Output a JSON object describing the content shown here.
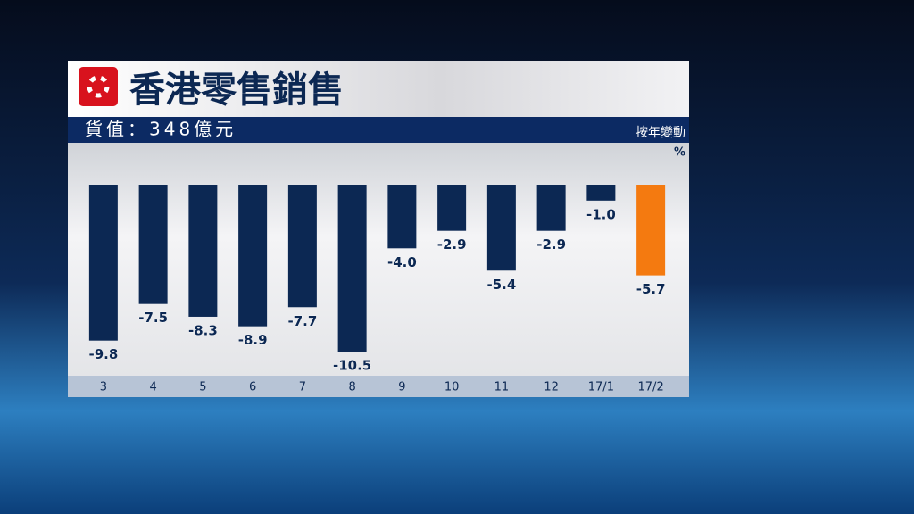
{
  "chart_data": {
    "type": "bar",
    "title": "香港零售銷售",
    "subtitle": "貨值：348億元",
    "y_label": "按年變動",
    "unit": "%",
    "categories": [
      "3",
      "4",
      "5",
      "6",
      "7",
      "8",
      "9",
      "10",
      "11",
      "12",
      "17/1",
      "17/2"
    ],
    "values": [
      -9.8,
      -7.5,
      -8.3,
      -8.9,
      -7.7,
      -10.5,
      -4.0,
      -2.9,
      -5.4,
      -2.9,
      -1.0,
      -5.7
    ],
    "value_labels": [
      "-9.8",
      "-7.5",
      "-8.3",
      "-8.9",
      "-7.7",
      "-10.5",
      "-4.0",
      "-2.9",
      "-5.4",
      "-2.9",
      "-1.0",
      "-5.7"
    ],
    "colors": [
      "#0c2853",
      "#0c2853",
      "#0c2853",
      "#0c2853",
      "#0c2853",
      "#0c2853",
      "#0c2853",
      "#0c2853",
      "#0c2853",
      "#0c2853",
      "#0c2853",
      "#f47a10"
    ],
    "ylim": [
      -11.5,
      0
    ]
  }
}
